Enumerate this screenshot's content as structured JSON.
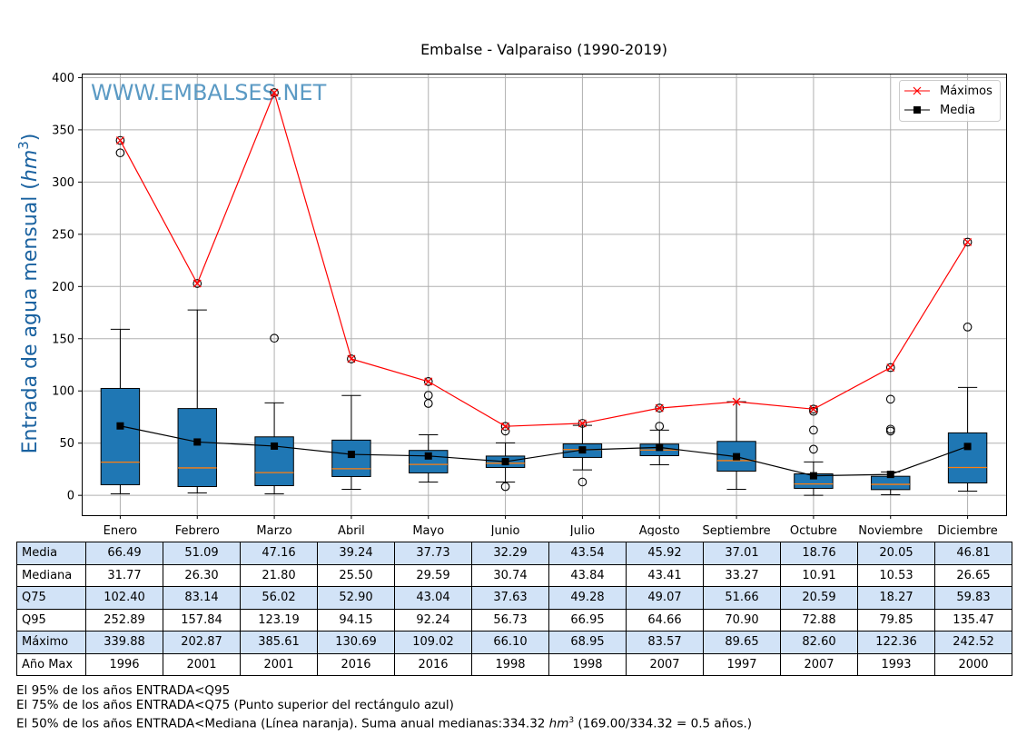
{
  "chart_data": {
    "type": "box",
    "title": "Embalse - Valparaiso (1990-2019)",
    "watermark": "WWW.EMBALSES.NET",
    "ylabel": "Entrada de agua mensual (hm³)",
    "xlabel": "",
    "ylim": [
      -19,
      403
    ],
    "yticks": [
      0,
      50,
      100,
      150,
      200,
      250,
      300,
      350,
      400
    ],
    "grid": true,
    "legend_position": "top-right",
    "categories": [
      "Enero",
      "Febrero",
      "Marzo",
      "Abril",
      "Mayo",
      "Junio",
      "Julio",
      "Agosto",
      "Septiembre",
      "Octubre",
      "Noviembre",
      "Diciembre"
    ],
    "boxes": [
      {
        "low": 1.5,
        "q1": 10.2,
        "median": 31.77,
        "q3": 102.4,
        "high": 159,
        "outliers": [
          328,
          339.88
        ]
      },
      {
        "low": 2.3,
        "q1": 8.4,
        "median": 26.3,
        "q3": 83.14,
        "high": 177.5,
        "outliers": [
          202.87
        ]
      },
      {
        "low": 1.5,
        "q1": 9.3,
        "median": 21.8,
        "q3": 56.02,
        "high": 88.6,
        "outliers": [
          150.5,
          385.61
        ]
      },
      {
        "low": 5.8,
        "q1": 18,
        "median": 25.5,
        "q3": 52.9,
        "high": 95.6,
        "outliers": [
          130.69
        ]
      },
      {
        "low": 12.8,
        "q1": 21.5,
        "median": 29.59,
        "q3": 43.04,
        "high": 58,
        "outliers": [
          88,
          95.8,
          109.02
        ]
      },
      {
        "low": 12.8,
        "q1": 26.7,
        "median": 30.74,
        "q3": 37.63,
        "high": 50.3,
        "outliers": [
          8.4,
          61.6,
          66.1
        ]
      },
      {
        "low": 24.4,
        "q1": 36.3,
        "median": 43.84,
        "q3": 49.28,
        "high": 67,
        "outliers": [
          12.8,
          68.95
        ]
      },
      {
        "low": 29.3,
        "q1": 38,
        "median": 43.41,
        "q3": 49.07,
        "high": 62.5,
        "outliers": [
          66.2,
          83.57
        ]
      },
      {
        "low": 5.8,
        "q1": 23.2,
        "median": 33.27,
        "q3": 51.66,
        "high": 89.65,
        "outliers": []
      },
      {
        "low": 0,
        "q1": 6.7,
        "median": 10.91,
        "q3": 20.59,
        "high": 32,
        "outliers": [
          44.2,
          62.5,
          80.5,
          82.6
        ]
      },
      {
        "low": 0.6,
        "q1": 5.5,
        "median": 10.53,
        "q3": 18.27,
        "high": 22.4,
        "outliers": [
          61.6,
          63.4,
          92.1,
          122.36
        ]
      },
      {
        "low": 4.1,
        "q1": 11.9,
        "median": 26.65,
        "q3": 59.83,
        "high": 103.4,
        "outliers": [
          161.2,
          242.52
        ]
      }
    ],
    "series": [
      {
        "name": "Máximos",
        "color": "#ff0000",
        "marker": "x",
        "values": [
          339.88,
          202.87,
          385.61,
          130.69,
          109.02,
          66.1,
          68.95,
          83.57,
          89.65,
          82.6,
          122.36,
          242.52
        ]
      },
      {
        "name": "Media",
        "color": "#000000",
        "marker": "square",
        "values": [
          66.49,
          51.09,
          47.16,
          39.24,
          37.73,
          32.29,
          43.54,
          45.92,
          37.01,
          18.76,
          20.05,
          46.81
        ]
      }
    ],
    "colors": {
      "box": "#1f77b4",
      "median": "#ff7f0e",
      "watermark": "#5b9ac4",
      "ylabel": "#1a62a0"
    }
  },
  "table": {
    "rows": [
      {
        "label": "Media",
        "values": [
          "66.49",
          "51.09",
          "47.16",
          "39.24",
          "37.73",
          "32.29",
          "43.54",
          "45.92",
          "37.01",
          "18.76",
          "20.05",
          "46.81"
        ]
      },
      {
        "label": "Mediana",
        "values": [
          "31.77",
          "26.30",
          "21.80",
          "25.50",
          "29.59",
          "30.74",
          "43.84",
          "43.41",
          "33.27",
          "10.91",
          "10.53",
          "26.65"
        ]
      },
      {
        "label": "Q75",
        "values": [
          "102.40",
          "83.14",
          "56.02",
          "52.90",
          "43.04",
          "37.63",
          "49.28",
          "49.07",
          "51.66",
          "20.59",
          "18.27",
          "59.83"
        ]
      },
      {
        "label": "Q95",
        "values": [
          "252.89",
          "157.84",
          "123.19",
          "94.15",
          "92.24",
          "56.73",
          "66.95",
          "64.66",
          "70.90",
          "72.88",
          "79.85",
          "135.47"
        ]
      },
      {
        "label": "Máximo",
        "values": [
          "339.88",
          "202.87",
          "385.61",
          "130.69",
          "109.02",
          "66.10",
          "68.95",
          "83.57",
          "89.65",
          "82.60",
          "122.36",
          "242.52"
        ]
      },
      {
        "label": "Año Max",
        "values": [
          "1996",
          "2001",
          "2001",
          "2016",
          "2016",
          "1998",
          "1998",
          "2007",
          "1997",
          "2007",
          "1993",
          "2000"
        ]
      }
    ]
  },
  "notes": {
    "line1": "El 95% de los años ENTRADA<Q95",
    "line2": "El 75% de los años ENTRADA<Q75 (Punto superior del rectángulo azul)",
    "line3_a": "El 50% de los años ENTRADA<Mediana (Línea naranja). Suma anual medianas:334.32 ",
    "line3_unit": "hm",
    "line3_exp": "3",
    "line3_b": " (169.00/334.32 = 0.5 años.)"
  }
}
